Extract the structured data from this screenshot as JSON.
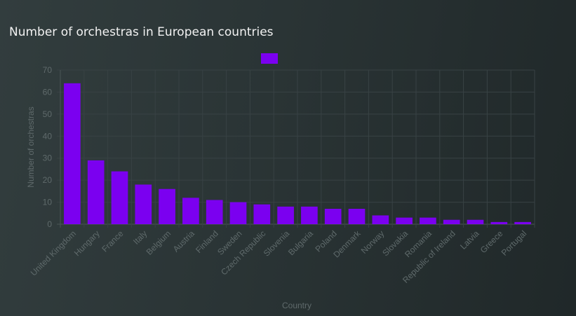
{
  "title": "Number of orchestras in European countries",
  "colors": {
    "bar": "#7b00f0",
    "grid": "#384244",
    "axis": "#4a5556",
    "text": "#5f6a6b"
  },
  "chart_data": {
    "type": "bar",
    "title": "Number of orchestras in European countries",
    "xlabel": "Country",
    "ylabel": "Number of orchestras",
    "ylim": [
      0,
      70
    ],
    "yticks": [
      0,
      10,
      20,
      30,
      40,
      50,
      60,
      70
    ],
    "grid": true,
    "legend": "top-center",
    "categories": [
      "United Kingdom",
      "Hungary",
      "France",
      "Italy",
      "Belgium",
      "Austria",
      "Finland",
      "Sweden",
      "Czech Republic",
      "Slovenia",
      "Bulgaria",
      "Poland",
      "Denmark",
      "Norway",
      "Slovakia",
      "Romania",
      "Republic of Ireland",
      "Latvia",
      "Greece",
      "Portugal"
    ],
    "series": [
      {
        "values": [
          64,
          29,
          24,
          18,
          16,
          12,
          11,
          10,
          9,
          8,
          8,
          7,
          7,
          4,
          3,
          3,
          2,
          2,
          1,
          1
        ]
      }
    ]
  }
}
